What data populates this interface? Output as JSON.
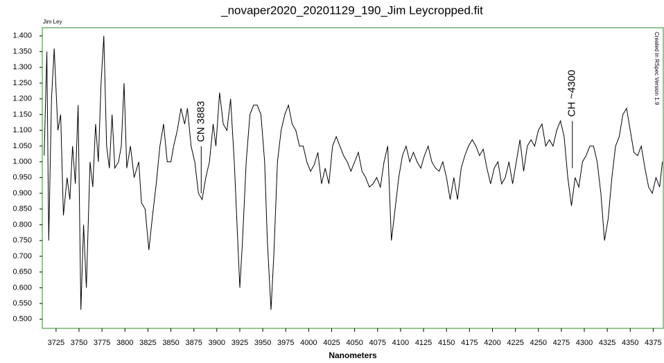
{
  "chart_data": {
    "type": "line",
    "title": "_novaper2020_20201129_190_Jim Leycropped.fit",
    "author": "Jim Ley",
    "side_note": "Created in RSpec Version 1.9",
    "x_label": "Nanometers",
    "color": "#000000",
    "frame_color": "#2e8b2e",
    "x": [
      3712,
      3715,
      3717,
      3720,
      3723,
      3727,
      3730,
      3733,
      3737,
      3740,
      3743,
      3746,
      3749,
      3752,
      3755,
      3758,
      3762,
      3765,
      3768,
      3771,
      3774,
      3777,
      3780,
      3783,
      3786,
      3789,
      3793,
      3796,
      3799,
      3802,
      3806,
      3810,
      3815,
      3818,
      3822,
      3826,
      3830,
      3834,
      3838,
      3842,
      3846,
      3850,
      3853,
      3857,
      3861,
      3865,
      3868,
      3872,
      3876,
      3880,
      3884,
      3888,
      3892,
      3896,
      3899,
      3903,
      3907,
      3911,
      3915,
      3919,
      3922,
      3925,
      3928,
      3932,
      3936,
      3940,
      3944,
      3948,
      3952,
      3955,
      3959,
      3962,
      3966,
      3970,
      3974,
      3978,
      3982,
      3986,
      3990,
      3994,
      3998,
      4002,
      4006,
      4010,
      4014,
      4018,
      4022,
      4026,
      4030,
      4034,
      4038,
      4042,
      4046,
      4050,
      4054,
      4058,
      4062,
      4066,
      4070,
      4074,
      4078,
      4082,
      4086,
      4090,
      4094,
      4098,
      4102,
      4106,
      4110,
      4114,
      4118,
      4122,
      4126,
      4130,
      4134,
      4138,
      4142,
      4146,
      4150,
      4154,
      4158,
      4162,
      4166,
      4170,
      4174,
      4178,
      4182,
      4186,
      4190,
      4194,
      4198,
      4202,
      4206,
      4210,
      4214,
      4218,
      4222,
      4226,
      4230,
      4234,
      4238,
      4242,
      4246,
      4250,
      4254,
      4258,
      4262,
      4266,
      4270,
      4274,
      4278,
      4282,
      4286,
      4290,
      4294,
      4298,
      4302,
      4306,
      4310,
      4314,
      4318,
      4322,
      4326,
      4330,
      4334,
      4338,
      4342,
      4346,
      4350,
      4354,
      4358,
      4362,
      4366,
      4370,
      4374,
      4378,
      4382,
      4385
    ],
    "values": [
      1.02,
      1.35,
      0.75,
      1.2,
      1.36,
      1.1,
      1.15,
      0.83,
      0.95,
      0.88,
      1.05,
      0.93,
      1.18,
      0.53,
      0.8,
      0.6,
      1.0,
      0.92,
      1.12,
      1.0,
      1.25,
      1.4,
      1.05,
      0.98,
      1.15,
      0.98,
      1.0,
      1.05,
      1.25,
      0.98,
      1.05,
      0.95,
      1.0,
      0.87,
      0.85,
      0.72,
      0.83,
      0.93,
      1.05,
      1.12,
      1.0,
      1.0,
      1.05,
      1.1,
      1.17,
      1.12,
      1.17,
      1.05,
      1.0,
      0.9,
      0.88,
      0.95,
      1.0,
      1.12,
      1.05,
      1.22,
      1.12,
      1.1,
      1.2,
      1.0,
      0.8,
      0.6,
      0.75,
      1.0,
      1.15,
      1.18,
      1.18,
      1.15,
      1.0,
      0.75,
      0.53,
      0.7,
      1.0,
      1.1,
      1.15,
      1.18,
      1.12,
      1.1,
      1.05,
      1.05,
      1.0,
      0.97,
      0.99,
      1.03,
      0.93,
      0.98,
      0.93,
      1.05,
      1.08,
      1.05,
      1.02,
      1.0,
      0.97,
      1.0,
      1.03,
      0.97,
      0.95,
      0.92,
      0.93,
      0.95,
      0.92,
      1.0,
      1.05,
      0.75,
      0.85,
      0.95,
      1.02,
      1.05,
      1.0,
      1.03,
      1.0,
      0.98,
      1.02,
      1.05,
      1.0,
      0.98,
      0.97,
      1.0,
      0.95,
      0.88,
      0.95,
      0.88,
      0.98,
      1.02,
      1.05,
      1.07,
      1.05,
      1.02,
      1.04,
      0.98,
      0.93,
      0.98,
      1.0,
      0.93,
      0.95,
      1.0,
      0.93,
      1.0,
      1.07,
      0.97,
      1.05,
      1.07,
      1.05,
      1.1,
      1.12,
      1.05,
      1.07,
      1.05,
      1.1,
      1.13,
      1.08,
      0.95,
      0.86,
      0.95,
      0.92,
      1.0,
      1.02,
      1.05,
      1.05,
      1.0,
      0.9,
      0.75,
      0.82,
      0.95,
      1.05,
      1.08,
      1.15,
      1.17,
      1.1,
      1.03,
      1.02,
      1.05,
      0.98,
      0.92,
      0.9,
      0.95,
      0.92,
      1.0
    ],
    "xlim": [
      3710,
      4386
    ],
    "ylim": [
      0.471,
      1.426
    ],
    "xticks": [
      3725,
      3750,
      3775,
      3800,
      3825,
      3850,
      3875,
      3900,
      3925,
      3950,
      3975,
      4000,
      4025,
      4050,
      4075,
      4100,
      4125,
      4150,
      4175,
      4200,
      4225,
      4250,
      4275,
      4300,
      4325,
      4350,
      4375
    ],
    "yticks": [
      {
        "value": 0.5,
        "label": "0.500"
      },
      {
        "value": 0.55,
        "label": "0.550"
      },
      {
        "value": 0.6,
        "label": "0.600"
      },
      {
        "value": 0.65,
        "label": "0.650"
      },
      {
        "value": 0.7,
        "label": "0.700"
      },
      {
        "value": 0.75,
        "label": "0.750"
      },
      {
        "value": 0.8,
        "label": "0.800"
      },
      {
        "value": 0.85,
        "label": "0.850"
      },
      {
        "value": 0.9,
        "label": "0.900"
      },
      {
        "value": 0.95,
        "label": "0.950"
      },
      {
        "value": 1.0,
        "label": "1.000"
      },
      {
        "value": 1.05,
        "label": "1.050"
      },
      {
        "value": 1.1,
        "label": "1.100"
      },
      {
        "value": 1.15,
        "label": "1.150"
      },
      {
        "value": 1.2,
        "label": "1.200"
      },
      {
        "value": 1.25,
        "label": "1.250"
      },
      {
        "value": 1.3,
        "label": "1.300"
      },
      {
        "value": 1.35,
        "label": "1.350"
      },
      {
        "value": 1.4,
        "label": "1.400"
      }
    ],
    "annotations": [
      {
        "text": "CN 3883",
        "x": 3883,
        "y": 0.9
      },
      {
        "text": "CH ~4300",
        "x": 4287,
        "y": 0.98
      }
    ]
  }
}
